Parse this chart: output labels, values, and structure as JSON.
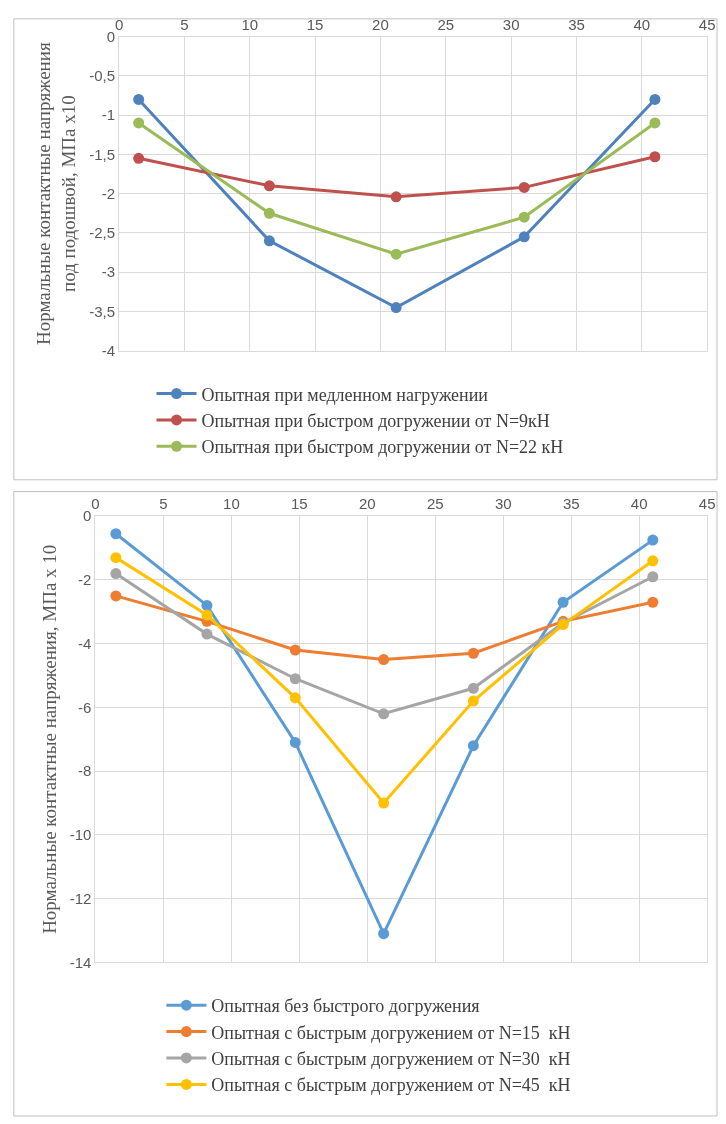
{
  "chart_data": [
    {
      "type": "line",
      "ylabel": "Нормальные контактные напряжения\nпод подошвой, МПа х10",
      "x": [
        1.5,
        11.5,
        21.2,
        31,
        41
      ],
      "series": [
        {
          "name": "Опытная при медленном нагружении",
          "color": "#4f81bd",
          "values": [
            -0.8,
            -2.6,
            -3.45,
            -2.55,
            -0.8
          ]
        },
        {
          "name": "Опытная при быстром догружении от N=9кН",
          "color": "#c0504d",
          "values": [
            -1.55,
            -1.9,
            -2.04,
            -1.92,
            -1.53
          ]
        },
        {
          "name": "Опытная при быстром догружении от N=22 кН",
          "color": "#9bbb59",
          "values": [
            -1.1,
            -2.25,
            -2.77,
            -2.3,
            -1.1
          ]
        }
      ],
      "xlim": [
        0,
        45
      ],
      "xticks": [
        0,
        5,
        10,
        15,
        20,
        25,
        30,
        35,
        40,
        45
      ],
      "ylim": [
        -4,
        0
      ],
      "yticks": [
        {
          "value": -4,
          "label": "-4"
        },
        {
          "value": -3.5,
          "label": "-3,5"
        },
        {
          "value": -3,
          "label": "-3"
        },
        {
          "value": -2.5,
          "label": "-2,5"
        },
        {
          "value": -2,
          "label": "-2"
        },
        {
          "value": -1.5,
          "label": "-1,5"
        },
        {
          "value": -1,
          "label": "-1"
        },
        {
          "value": -0.5,
          "label": "-0,5"
        },
        {
          "value": 0,
          "label": "0"
        }
      ],
      "grid": true,
      "legend": "bottom",
      "marker": "circle",
      "line_style": "solid"
    },
    {
      "type": "line",
      "ylabel": "Нормальные контактные напряжения, МПа х 10",
      "x": [
        1.5,
        8.2,
        14.7,
        21.2,
        27.8,
        34.4,
        41
      ],
      "series": [
        {
          "name": "Опытная без быстрого догружения",
          "color": "#5b9bd5",
          "values": [
            -0.55,
            -2.8,
            -7.1,
            -13.1,
            -7.2,
            -2.7,
            -0.75
          ]
        },
        {
          "name": "Опытная с быстрым догружением от N=15  кН",
          "color": "#ed7d31",
          "values": [
            -2.5,
            -3.3,
            -4.2,
            -4.5,
            -4.3,
            -3.3,
            -2.7
          ]
        },
        {
          "name": "Опытная с быстрым догружением от N=30  кН",
          "color": "#a5a5a5",
          "values": [
            -1.8,
            -3.7,
            -5.1,
            -6.2,
            -5.4,
            -3.35,
            -1.9
          ]
        },
        {
          "name": "Опытная с быстрым догружением от N=45  кН",
          "color": "#ffc000",
          "values": [
            -1.3,
            -3.1,
            -5.7,
            -9.0,
            -5.8,
            -3.4,
            -1.4
          ]
        }
      ],
      "xlim": [
        0,
        45
      ],
      "xticks": [
        0,
        5,
        10,
        15,
        20,
        25,
        30,
        35,
        40,
        45
      ],
      "ylim": [
        -14,
        0
      ],
      "yticks": [
        -14,
        -12,
        -10,
        -8,
        -6,
        -4,
        -2,
        0
      ],
      "grid": true,
      "legend": "bottom",
      "marker": "circle",
      "line_style": "solid"
    }
  ]
}
